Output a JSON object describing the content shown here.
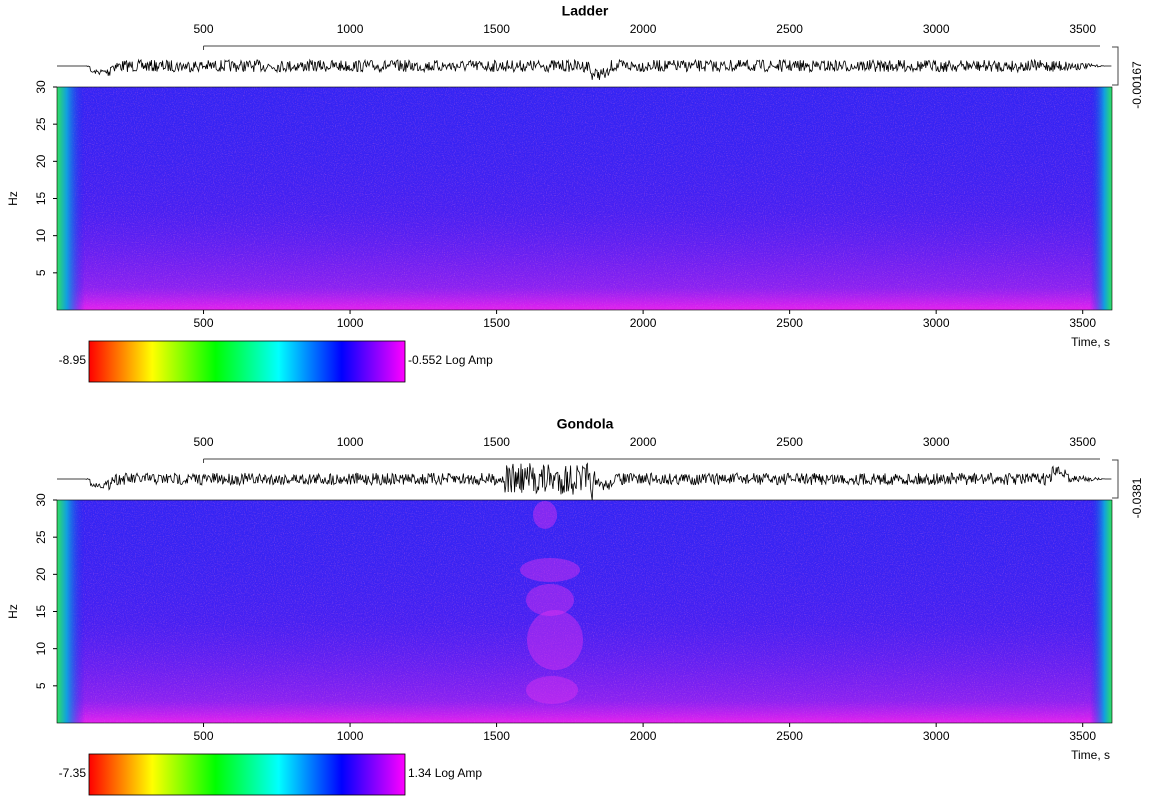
{
  "chart_data": [
    {
      "type": "spectrogram",
      "title": "Ladder",
      "xlabel": "Time, s",
      "ylabel": "Hz",
      "xlim": [
        0,
        3600
      ],
      "xticks": [
        500,
        1000,
        1500,
        2000,
        2500,
        3000,
        3500
      ],
      "ylim": [
        0,
        30
      ],
      "yticks": [
        5,
        10,
        15,
        20,
        25,
        30
      ],
      "colorbar_min": -8.95,
      "colorbar_max": -0.552,
      "colorbar_unit": "Log Amp",
      "colormap": [
        "#ff0000",
        "#ffff00",
        "#00ff00",
        "#00ffff",
        "#0000ff",
        "#ff00ff"
      ],
      "trace_scale": -0.00167
    },
    {
      "type": "spectrogram",
      "title": "Gondola",
      "xlabel": "Time, s",
      "ylabel": "Hz",
      "xlim": [
        0,
        3600
      ],
      "xticks": [
        500,
        1000,
        1500,
        2000,
        2500,
        3000,
        3500
      ],
      "ylim": [
        0,
        30
      ],
      "yticks": [
        5,
        10,
        15,
        20,
        25,
        30
      ],
      "colorbar_min": -7.35,
      "colorbar_max": 1.34,
      "colorbar_unit": "Log Amp",
      "colormap": [
        "#ff0000",
        "#ffff00",
        "#00ff00",
        "#00ffff",
        "#0000ff",
        "#ff00ff"
      ],
      "trace_scale": -0.0381
    }
  ]
}
